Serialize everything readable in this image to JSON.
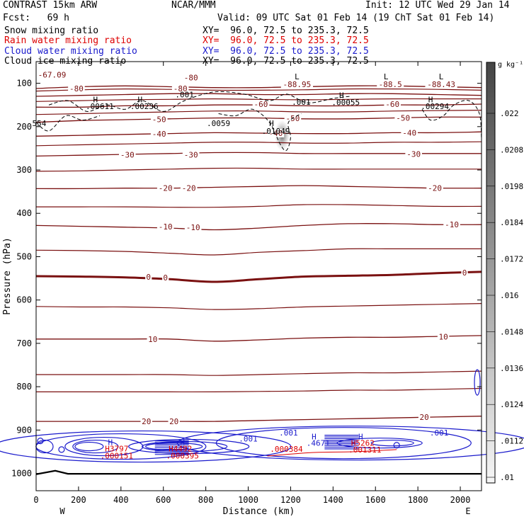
{
  "header": {
    "left1": "CONTRAST 15km ARW",
    "left2": "Fcst:   69 h",
    "center": "NCAR/MMM",
    "init": "Init: 12 UTC Wed 29 Jan 14",
    "valid": "Valid: 09 UTC Sat 01 Feb 14 (19 ChT Sat 01 Feb 14)"
  },
  "legend": [
    {
      "label": "Snow mixing ratio",
      "xy": "XY=  96.0, 72.5 to 235.3, 72.5",
      "color": "#000000"
    },
    {
      "label": "Rain water mixing ratio",
      "xy": "XY=  96.0, 72.5 to 235.3, 72.5",
      "color": "#dd0000"
    },
    {
      "label": "Cloud water mixing ratio",
      "xy": "XY=  96.0, 72.5 to 235.3, 72.5",
      "color": "#1a1acc"
    },
    {
      "label": "Cloud ice mixing ratio",
      "xy": "XY=  96.0, 72.5 to 235.3, 72.5",
      "color": "#000000"
    }
  ],
  "colors": {
    "temperature": "#7a1010",
    "zero_isotherm": "#7a1010",
    "cloud_water": "#1a1acc",
    "rain": "#dd0000",
    "ice": "#000000",
    "terrain": "#000000"
  },
  "chart_data": {
    "type": "contour",
    "xlabel": "Distance (km)",
    "ylabel": "Pressure (hPa)",
    "xlim": [
      0,
      2100
    ],
    "ylim": [
      1040,
      50
    ],
    "x_ticks": [
      0,
      200,
      400,
      600,
      800,
      1000,
      1200,
      1400,
      1600,
      1800,
      2000
    ],
    "y_ticks": [
      100,
      200,
      300,
      400,
      500,
      600,
      700,
      800,
      900,
      1000
    ],
    "x_end_labels": {
      "left": "W",
      "right": "E"
    },
    "temperature_contours": [
      {
        "level": -80,
        "p": [
          112,
          108,
          106,
          108,
          110,
          110,
          108,
          106,
          106,
          108,
          110
        ]
      },
      {
        "level": -70,
        "p": [
          130,
          128,
          126,
          124,
          124,
          126,
          126,
          124,
          124,
          126,
          128
        ]
      },
      {
        "level": -60,
        "p": [
          155,
          155,
          152,
          152,
          150,
          150,
          152,
          152,
          150,
          150,
          148
        ]
      },
      {
        "level": -50,
        "p": [
          190,
          186,
          184,
          182,
          180,
          180,
          182,
          182,
          180,
          178,
          178
        ]
      },
      {
        "level": -40,
        "p": [
          222,
          220,
          218,
          216,
          214,
          215,
          216,
          216,
          214,
          214,
          212
        ]
      },
      {
        "level": -30,
        "p": [
          268,
          266,
          264,
          262,
          260,
          260,
          262,
          262,
          262,
          262,
          262
        ]
      },
      {
        "level": -20,
        "p": [
          343,
          343,
          342,
          342,
          340,
          338,
          336,
          338,
          340,
          342,
          342
        ]
      },
      {
        "level": -10,
        "p": [
          428,
          430,
          432,
          434,
          438,
          434,
          428,
          424,
          424,
          426,
          426
        ]
      },
      {
        "level": 0,
        "p": [
          545,
          546,
          548,
          552,
          558,
          552,
          546,
          544,
          542,
          538,
          535
        ]
      },
      {
        "level": 10,
        "p": [
          690,
          690,
          690,
          690,
          695,
          692,
          688,
          686,
          686,
          684,
          682
        ]
      },
      {
        "level": 20,
        "p": [
          880,
          880,
          880,
          880,
          880,
          878,
          876,
          874,
          872,
          870,
          868
        ]
      }
    ],
    "temperature_labels": [
      {
        "text": "-67.09",
        "x": 75,
        "p": 80
      },
      {
        "text": "-80",
        "x": 730,
        "p": 87
      },
      {
        "text": "-80",
        "x": 190,
        "p": 112
      },
      {
        "text": "-80",
        "x": 680,
        "p": 112
      },
      {
        "text": "-88.95",
        "x": 1230,
        "p": 102
      },
      {
        "text": "-88.5",
        "x": 1670,
        "p": 102
      },
      {
        "text": "-88.43",
        "x": 1910,
        "p": 102
      },
      {
        "text": "-60",
        "x": 1060,
        "p": 148
      },
      {
        "text": "-60",
        "x": 1680,
        "p": 148
      },
      {
        "text": "-50",
        "x": 580,
        "p": 183
      },
      {
        "text": "-50",
        "x": 1210,
        "p": 181
      },
      {
        "text": "-50",
        "x": 1730,
        "p": 180
      },
      {
        "text": "-40",
        "x": 580,
        "p": 217
      },
      {
        "text": "-40",
        "x": 1760,
        "p": 214
      },
      {
        "text": "-40",
        "x": 1130,
        "p": 215
      },
      {
        "text": "-30",
        "x": 430,
        "p": 265
      },
      {
        "text": "-30",
        "x": 730,
        "p": 265
      },
      {
        "text": "-30",
        "x": 1780,
        "p": 263
      },
      {
        "text": "-20",
        "x": 610,
        "p": 342
      },
      {
        "text": "-20",
        "x": 720,
        "p": 342
      },
      {
        "text": "-20",
        "x": 1880,
        "p": 342
      },
      {
        "text": "-10",
        "x": 610,
        "p": 431
      },
      {
        "text": "-10",
        "x": 740,
        "p": 432
      },
      {
        "text": "-10",
        "x": 1960,
        "p": 426
      },
      {
        "text": "0",
        "x": 530,
        "p": 547
      },
      {
        "text": "0",
        "x": 610,
        "p": 548
      },
      {
        "text": "0",
        "x": 2020,
        "p": 537
      },
      {
        "text": "10",
        "x": 550,
        "p": 690
      },
      {
        "text": "10",
        "x": 1920,
        "p": 685
      },
      {
        "text": "20",
        "x": 520,
        "p": 880
      },
      {
        "text": "20",
        "x": 650,
        "p": 880
      },
      {
        "text": "20",
        "x": 1830,
        "p": 870
      }
    ],
    "cloud_ice_labels": [
      {
        "text": "H",
        "x": 280,
        "p": 137
      },
      {
        "text": ".00611",
        "x": 300,
        "p": 153
      },
      {
        "text": "H",
        "x": 490,
        "p": 137
      },
      {
        "text": ".00236",
        "x": 510,
        "p": 153
      },
      {
        "text": ".001",
        "x": 700,
        "p": 126
      },
      {
        "text": ".0059",
        "x": 860,
        "p": 192
      },
      {
        "text": "H",
        "x": 1110,
        "p": 192
      },
      {
        "text": ".01049",
        "x": 1130,
        "p": 210
      },
      {
        "text": "L",
        "x": 1230,
        "p": 84
      },
      {
        "text": "L",
        "x": 1650,
        "p": 84
      },
      {
        "text": "L",
        "x": 1910,
        "p": 84
      },
      {
        "text": "H",
        "x": 1440,
        "p": 128
      },
      {
        "text": ".00055",
        "x": 1460,
        "p": 144
      },
      {
        "text": ".001",
        "x": 1250,
        "p": 143
      },
      {
        "text": "H",
        "x": 1860,
        "p": 137
      },
      {
        "text": ".00294",
        "x": 1880,
        "p": 153
      },
      {
        "text": "554",
        "x": 15,
        "p": 192
      }
    ],
    "cloud_water_labels": [
      {
        "text": "H",
        "x": 350,
        "p": 928
      },
      {
        "text": "H",
        "x": 690,
        "p": 928
      },
      {
        "text": "H",
        "x": 1310,
        "p": 915
      },
      {
        "text": ".4671",
        "x": 1330,
        "p": 930
      },
      {
        "text": "H",
        "x": 1530,
        "p": 915
      },
      {
        "text": ".001",
        "x": 1000,
        "p": 920
      },
      {
        "text": ".001",
        "x": 1190,
        "p": 906
      },
      {
        "text": ".001",
        "x": 1900,
        "p": 906
      }
    ],
    "rain_labels": [
      {
        "text": "H3797",
        "x": 380,
        "p": 943
      },
      {
        "text": ".000151",
        "x": 380,
        "p": 959
      },
      {
        "text": "H4492",
        "x": 680,
        "p": 943
      },
      {
        "text": ".000395",
        "x": 690,
        "p": 959
      },
      {
        "text": ".000384",
        "x": 1180,
        "p": 944
      },
      {
        "text": "H5262",
        "x": 1540,
        "p": 930
      },
      {
        "text": ".001311",
        "x": 1550,
        "p": 945
      }
    ],
    "terrain_p": [
      1002,
      1001,
      1001,
      1001,
      1001,
      1001,
      1001,
      1001,
      1001,
      1001,
      1001
    ],
    "colorbar": {
      "unit": "g kg⁻¹",
      "ticks": [
        ".022",
        ".0208",
        ".0198",
        ".0184",
        ".0172",
        ".016",
        ".0148",
        ".0136",
        ".0124",
        ".0112",
        ".01"
      ]
    }
  }
}
